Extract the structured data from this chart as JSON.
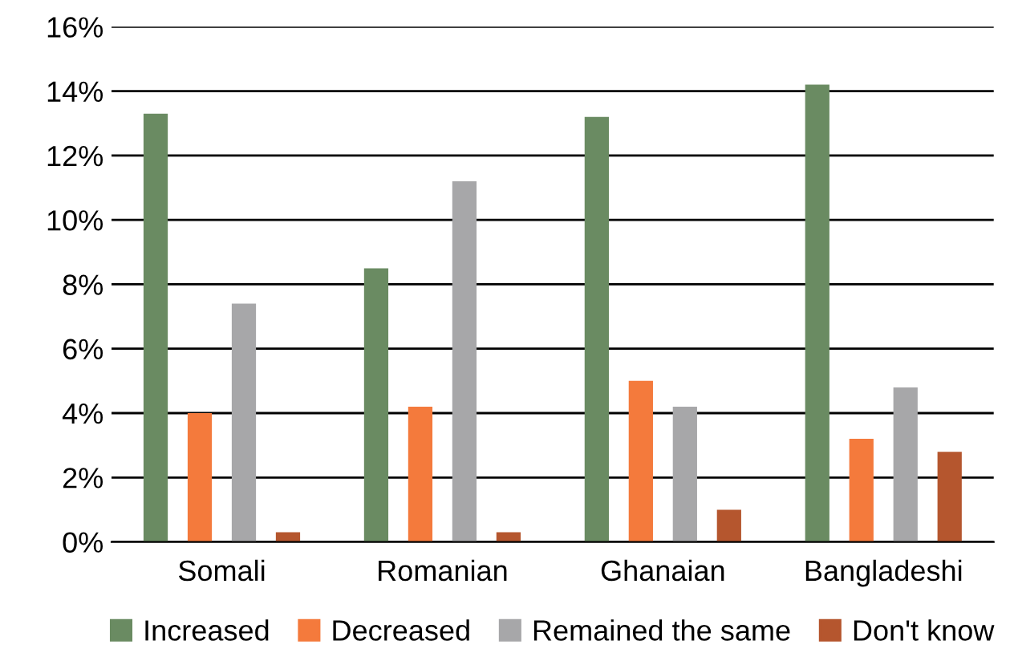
{
  "chart_data": {
    "type": "bar",
    "categories": [
      "Somali",
      "Romanian",
      "Ghanaian",
      "Bangladeshi"
    ],
    "series": [
      {
        "name": "Increased",
        "color": "#6a8b62",
        "values": [
          13.3,
          8.5,
          13.2,
          14.2
        ]
      },
      {
        "name": "Decreased",
        "color": "#f47a3c",
        "values": [
          4.0,
          4.2,
          5.0,
          3.2
        ]
      },
      {
        "name": "Remained the same",
        "color": "#a7a7a9",
        "values": [
          7.4,
          11.2,
          4.2,
          4.8
        ]
      },
      {
        "name": "Don't know",
        "color": "#b5562e",
        "values": [
          0.3,
          0.3,
          1.0,
          2.8
        ]
      }
    ],
    "ylim": [
      0,
      16
    ],
    "yticks": [
      {
        "value": 0,
        "label": "0%"
      },
      {
        "value": 2,
        "label": "2%"
      },
      {
        "value": 4,
        "label": "4%"
      },
      {
        "value": 6,
        "label": "6%"
      },
      {
        "value": 8,
        "label": "8%"
      },
      {
        "value": 10,
        "label": "10%"
      },
      {
        "value": 12,
        "label": "12%"
      },
      {
        "value": 14,
        "label": "14%"
      },
      {
        "value": 16,
        "label": "16%"
      }
    ],
    "grid": "y",
    "legend": "bottom"
  }
}
